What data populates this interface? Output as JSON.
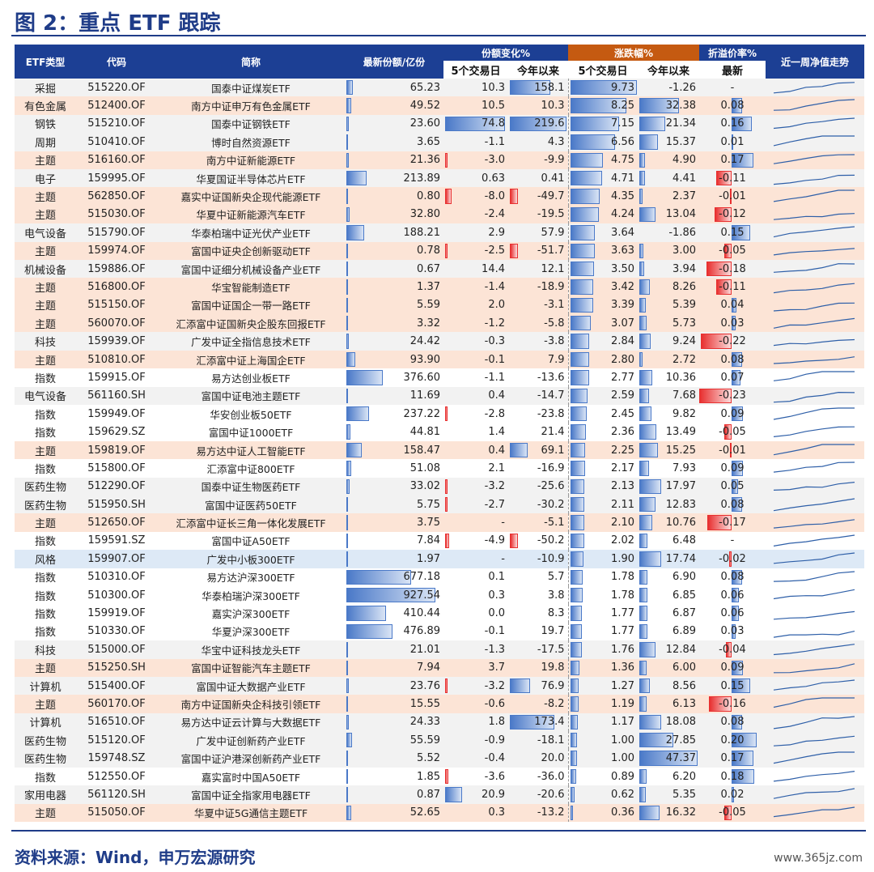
{
  "title": "图 2：重点 ETF 跟踪",
  "footer": "资料来源：Wind，申万宏源研究",
  "watermark": "www.365jz.com",
  "colors": {
    "header_blue": "#1c3f94",
    "header_orange": "#c55a11",
    "bar_blue": "#4a79c8",
    "bar_red": "#e83030",
    "pink": "#ffc7ce"
  },
  "headers": {
    "type": "ETF类型",
    "code": "代码",
    "name": "简称",
    "share": "最新份额/亿份",
    "share_change": "份额变化%",
    "price_change": "涨跌幅%",
    "premium": "折溢价率%",
    "trend": "近一周净值走势",
    "d5": "5个交易日",
    "ytd": "今年以来",
    "d5b": "5个交易日",
    "ytdb": "今年以来",
    "latest": "最新"
  },
  "rows": [
    {
      "t": "采掘",
      "c": "515220.OF",
      "n": "国泰中证煤炭ETF",
      "s": "65.23",
      "a": "10.3",
      "b": "158.1",
      "p": "9.73",
      "y": "-1.26",
      "r": "-",
      "z": 1
    },
    {
      "t": "有色金属",
      "c": "512400.OF",
      "n": "南方中证申万有色金属ETF",
      "s": "49.52",
      "a": "10.5",
      "b": "10.3",
      "p": "8.25",
      "y": "32.38",
      "r": "0.08",
      "z": 2
    },
    {
      "t": "钢铁",
      "c": "515210.OF",
      "n": "国泰中证钢铁ETF",
      "s": "23.60",
      "a": "74.8",
      "b": "219.6",
      "p": "7.15",
      "y": "21.34",
      "r": "0.16",
      "z": 1
    },
    {
      "t": "周期",
      "c": "510410.OF",
      "n": "博时自然资源ETF",
      "s": "3.65",
      "a": "-1.1",
      "b": "4.3",
      "p": "6.56",
      "y": "15.37",
      "r": "0.01",
      "z": 1
    },
    {
      "t": "主题",
      "c": "516160.OF",
      "n": "南方中证新能源ETF",
      "s": "21.36",
      "a": "-3.0",
      "b": "-9.9",
      "p": "4.75",
      "y": "4.90",
      "r": "0.17",
      "z": 2
    },
    {
      "t": "电子",
      "c": "159995.OF",
      "n": "华夏国证半导体芯片ETF",
      "s": "213.89",
      "a": "0.63",
      "b": "0.41",
      "p": "4.71",
      "y": "4.41",
      "r": "-0.11",
      "z": 1
    },
    {
      "t": "主题",
      "c": "562850.OF",
      "n": "嘉实中证国新央企现代能源ETF",
      "s": "0.80",
      "a": "-8.0",
      "b": "-49.7",
      "p": "4.35",
      "y": "2.37",
      "r": "-0.01",
      "z": 2
    },
    {
      "t": "主题",
      "c": "515030.OF",
      "n": "华夏中证新能源汽车ETF",
      "s": "32.80",
      "a": "-2.4",
      "b": "-19.5",
      "p": "4.24",
      "y": "13.04",
      "r": "-0.12",
      "z": 2
    },
    {
      "t": "电气设备",
      "c": "515790.OF",
      "n": "华泰柏瑞中证光伏产业ETF",
      "s": "188.21",
      "a": "2.9",
      "b": "57.9",
      "p": "3.64",
      "y": "-1.86",
      "r": "0.15",
      "z": 1
    },
    {
      "t": "主题",
      "c": "159974.OF",
      "n": "富国中证央企创新驱动ETF",
      "s": "0.78",
      "a": "-2.5",
      "b": "-51.7",
      "p": "3.63",
      "y": "3.00",
      "r": "-0.05",
      "z": 2
    },
    {
      "t": "机械设备",
      "c": "159886.OF",
      "n": "富国中证细分机械设备产业ETF",
      "s": "0.67",
      "a": "14.4",
      "b": "12.1",
      "p": "3.50",
      "y": "3.94",
      "r": "-0.18",
      "z": 1
    },
    {
      "t": "主题",
      "c": "516800.OF",
      "n": "华宝智能制造ETF",
      "s": "1.37",
      "a": "-1.4",
      "b": "-18.9",
      "p": "3.42",
      "y": "8.26",
      "r": "-0.11",
      "z": 2
    },
    {
      "t": "主题",
      "c": "515150.OF",
      "n": "富国中证国企一带一路ETF",
      "s": "5.59",
      "a": "2.0",
      "b": "-3.1",
      "p": "3.39",
      "y": "5.39",
      "r": "0.04",
      "z": 2
    },
    {
      "t": "主题",
      "c": "560070.OF",
      "n": "汇添富中证国新央企股东回报ETF",
      "s": "3.32",
      "a": "-1.2",
      "b": "-5.8",
      "p": "3.07",
      "y": "5.73",
      "r": "0.03",
      "z": 2
    },
    {
      "t": "科技",
      "c": "159939.OF",
      "n": "广发中证全指信息技术ETF",
      "s": "24.42",
      "a": "-0.3",
      "b": "-3.8",
      "p": "2.84",
      "y": "9.24",
      "r": "-0.22",
      "z": 1
    },
    {
      "t": "主题",
      "c": "510810.OF",
      "n": "汇添富中证上海国企ETF",
      "s": "93.90",
      "a": "-0.1",
      "b": "7.9",
      "p": "2.80",
      "y": "2.72",
      "r": "0.08",
      "z": 2
    },
    {
      "t": "指数",
      "c": "159915.OF",
      "n": "易方达创业板ETF",
      "s": "376.60",
      "a": "-1.1",
      "b": "-13.6",
      "p": "2.77",
      "y": "10.36",
      "r": "0.07",
      "z": 3
    },
    {
      "t": "电气设备",
      "c": "561160.SH",
      "n": "富国中证电池主题ETF",
      "s": "11.69",
      "a": "0.4",
      "b": "-14.7",
      "p": "2.59",
      "y": "7.68",
      "r": "-0.23",
      "z": 1
    },
    {
      "t": "指数",
      "c": "159949.OF",
      "n": "华安创业板50ETF",
      "s": "237.22",
      "a": "-2.8",
      "b": "-23.8",
      "p": "2.45",
      "y": "9.82",
      "r": "0.09",
      "z": 3
    },
    {
      "t": "指数",
      "c": "159629.SZ",
      "n": "富国中证1000ETF",
      "s": "44.81",
      "a": "1.4",
      "b": "21.4",
      "p": "2.36",
      "y": "13.49",
      "r": "-0.05",
      "z": 3
    },
    {
      "t": "主题",
      "c": "159819.OF",
      "n": "易方达中证人工智能ETF",
      "s": "158.47",
      "a": "0.4",
      "b": "69.1",
      "p": "2.25",
      "y": "15.25",
      "r": "-0.01",
      "z": 2
    },
    {
      "t": "指数",
      "c": "515800.OF",
      "n": "汇添富中证800ETF",
      "s": "51.08",
      "a": "2.1",
      "b": "-16.9",
      "p": "2.17",
      "y": "7.93",
      "r": "0.09",
      "z": 3
    },
    {
      "t": "医药生物",
      "c": "512290.OF",
      "n": "国泰中证生物医药ETF",
      "s": "33.02",
      "a": "-3.2",
      "b": "-25.6",
      "p": "2.13",
      "y": "17.97",
      "r": "0.05",
      "z": 1
    },
    {
      "t": "医药生物",
      "c": "515950.SH",
      "n": "富国中证医药50ETF",
      "s": "5.75",
      "a": "-2.7",
      "b": "-30.2",
      "p": "2.11",
      "y": "12.83",
      "r": "0.08",
      "z": 1
    },
    {
      "t": "主题",
      "c": "512650.OF",
      "n": "汇添富中证长三角一体化发展ETF",
      "s": "3.75",
      "a": "-",
      "b": "-5.1",
      "p": "2.10",
      "y": "10.76",
      "r": "-0.17",
      "z": 2
    },
    {
      "t": "指数",
      "c": "159591.SZ",
      "n": "富国中证A50ETF",
      "s": "7.84",
      "a": "-4.9",
      "b": "-50.2",
      "p": "2.02",
      "y": "6.48",
      "r": "-",
      "z": 3
    },
    {
      "t": "风格",
      "c": "159907.OF",
      "n": "广发中小板300ETF",
      "s": "1.97",
      "a": "-",
      "b": "-10.9",
      "p": "1.90",
      "y": "17.74",
      "r": "-0.02",
      "z": 4
    },
    {
      "t": "指数",
      "c": "510310.OF",
      "n": "易方达沪深300ETF",
      "s": "677.18",
      "a": "0.1",
      "b": "5.7",
      "p": "1.78",
      "y": "6.90",
      "r": "0.08",
      "z": 3
    },
    {
      "t": "指数",
      "c": "510300.OF",
      "n": "华泰柏瑞沪深300ETF",
      "s": "927.54",
      "a": "0.3",
      "b": "3.8",
      "p": "1.78",
      "y": "6.85",
      "r": "0.06",
      "z": 3
    },
    {
      "t": "指数",
      "c": "159919.OF",
      "n": "嘉实沪深300ETF",
      "s": "410.44",
      "a": "0.0",
      "b": "8.3",
      "p": "1.77",
      "y": "6.87",
      "r": "0.06",
      "z": 3
    },
    {
      "t": "指数",
      "c": "510330.OF",
      "n": "华夏沪深300ETF",
      "s": "476.89",
      "a": "-0.1",
      "b": "19.7",
      "p": "1.77",
      "y": "6.89",
      "r": "0.03",
      "z": 3
    },
    {
      "t": "科技",
      "c": "515000.OF",
      "n": "华宝中证科技龙头ETF",
      "s": "21.01",
      "a": "-1.3",
      "b": "-17.5",
      "p": "1.76",
      "y": "12.84",
      "r": "-0.04",
      "z": 1
    },
    {
      "t": "主题",
      "c": "515250.SH",
      "n": "富国中证智能汽车主题ETF",
      "s": "7.94",
      "a": "3.7",
      "b": "19.8",
      "p": "1.36",
      "y": "6.00",
      "r": "0.09",
      "z": 2
    },
    {
      "t": "计算机",
      "c": "515400.OF",
      "n": "富国中证大数据产业ETF",
      "s": "23.76",
      "a": "-3.2",
      "b": "76.9",
      "p": "1.27",
      "y": "8.56",
      "r": "0.15",
      "z": 1
    },
    {
      "t": "主题",
      "c": "560170.OF",
      "n": "南方中证国新央企科技引领ETF",
      "s": "15.55",
      "a": "-0.6",
      "b": "-8.2",
      "p": "1.19",
      "y": "6.13",
      "r": "-0.16",
      "z": 2
    },
    {
      "t": "计算机",
      "c": "516510.OF",
      "n": "易方达中证云计算与大数据ETF",
      "s": "24.33",
      "a": "1.8",
      "b": "173.4",
      "p": "1.17",
      "y": "18.08",
      "r": "0.08",
      "z": 1
    },
    {
      "t": "医药生物",
      "c": "515120.OF",
      "n": "广发中证创新药产业ETF",
      "s": "55.59",
      "a": "-0.9",
      "b": "-18.1",
      "p": "1.00",
      "y": "27.85",
      "r": "0.20",
      "z": 1
    },
    {
      "t": "医药生物",
      "c": "159748.SZ",
      "n": "富国中证沪港深创新药产业ETF",
      "s": "5.52",
      "a": "-0.4",
      "b": "20.0",
      "p": "1.00",
      "y": "47.37",
      "r": "0.17",
      "z": 1
    },
    {
      "t": "指数",
      "c": "512550.OF",
      "n": "嘉实富时中国A50ETF",
      "s": "1.85",
      "a": "-3.6",
      "b": "-36.0",
      "p": "0.89",
      "y": "6.20",
      "r": "0.18",
      "z": 3
    },
    {
      "t": "家用电器",
      "c": "561120.SH",
      "n": "富国中证全指家用电器ETF",
      "s": "0.87",
      "a": "20.9",
      "b": "-20.6",
      "p": "0.62",
      "y": "5.35",
      "r": "0.02",
      "z": 1
    },
    {
      "t": "主题",
      "c": "515050.OF",
      "n": "华夏中证5G通信主题ETF",
      "s": "52.65",
      "a": "0.3",
      "b": "-13.2",
      "p": "0.36",
      "y": "16.32",
      "r": "-0.05",
      "z": 2
    }
  ]
}
